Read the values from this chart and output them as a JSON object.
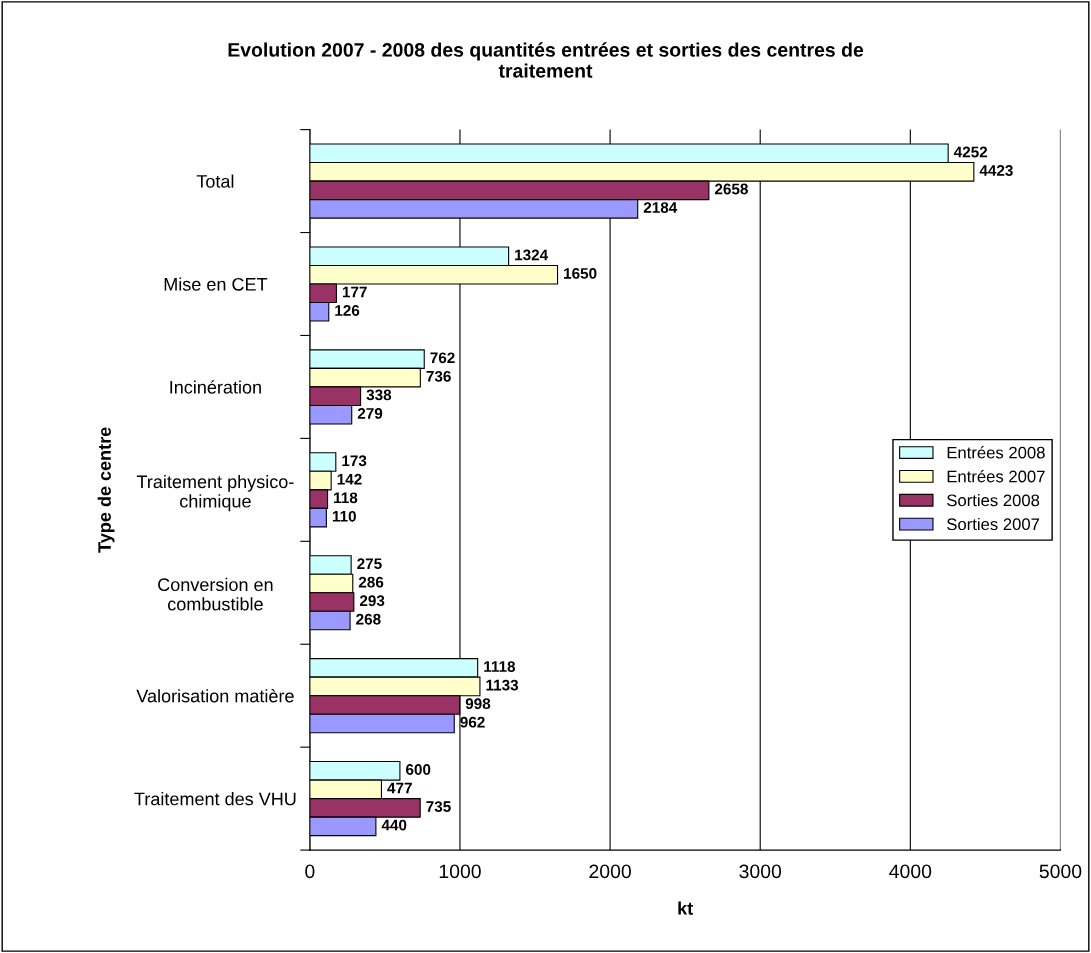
{
  "chart_data": {
    "type": "bar",
    "orientation": "horizontal",
    "title": "Evolution 2007 - 2008 des quantités entrées et sorties des centres de\ntraitement",
    "xlabel": "kt",
    "ylabel": "Type de centre",
    "categories": [
      "Total",
      "Mise en CET",
      "Incinération",
      "Traitement physico-\nchimique",
      "Conversion en\ncombustible",
      "Valorisation matière",
      "Traitement des VHU"
    ],
    "series": [
      {
        "name": "Entrées 2008",
        "color": "#ccffff",
        "values": [
          4252,
          1324,
          762,
          173,
          275,
          1118,
          600
        ]
      },
      {
        "name": "Entrées 2007",
        "color": "#ffffcc",
        "values": [
          4423,
          1650,
          736,
          142,
          286,
          1133,
          477
        ]
      },
      {
        "name": "Sorties 2008",
        "color": "#993366",
        "values": [
          2658,
          177,
          338,
          118,
          293,
          998,
          735
        ]
      },
      {
        "name": "Sorties 2007",
        "color": "#9999ff",
        "values": [
          2184,
          126,
          279,
          110,
          268,
          962,
          440
        ]
      }
    ],
    "xlim": [
      0,
      5000
    ],
    "xticks": [
      0,
      1000,
      2000,
      3000,
      4000,
      5000
    ],
    "grid": "x",
    "legend": "right",
    "data_labels": true
  }
}
